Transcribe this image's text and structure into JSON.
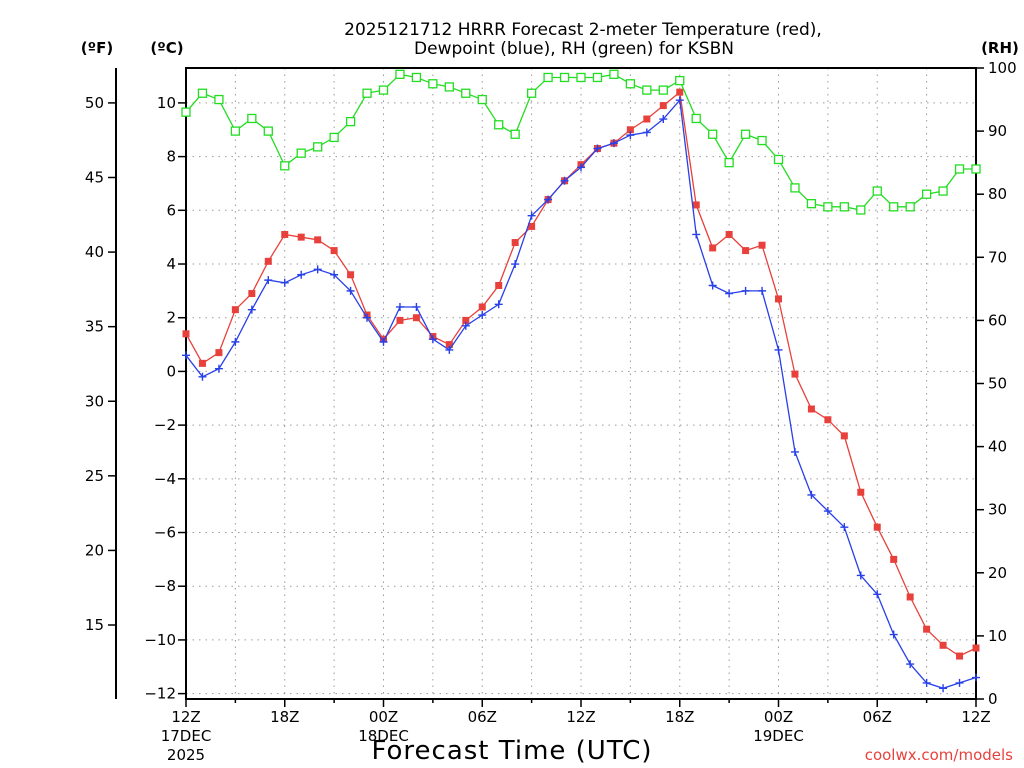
{
  "chart_data": {
    "type": "line",
    "title_line1": "2025121712 HRRR Forecast 2-meter Temperature (red),",
    "title_line2": "Dewpoint (blue), RH (green) for KSBN",
    "xlabel": "Forecast Time (UTC)",
    "credit": "coolwx.com/models",
    "units": {
      "fahrenheit": "(ºF)",
      "celsius": "(ºC)",
      "rh": "(RH)"
    },
    "hours": [
      0,
      1,
      2,
      3,
      4,
      5,
      6,
      7,
      8,
      9,
      10,
      11,
      12,
      13,
      14,
      15,
      16,
      17,
      18,
      19,
      20,
      21,
      22,
      23,
      24,
      25,
      26,
      27,
      28,
      29,
      30,
      31,
      32,
      33,
      34,
      35,
      36,
      37,
      38,
      39,
      40,
      41,
      42,
      43,
      44,
      45,
      46,
      47,
      48
    ],
    "ylim_c": [
      -12.2,
      11.3
    ],
    "ylim_f": [
      10.04,
      52.34
    ],
    "ylim_rh": [
      0,
      100
    ],
    "y_ticks_c": [
      -12,
      -10,
      -8,
      -6,
      -4,
      -2,
      0,
      2,
      4,
      6,
      8,
      10
    ],
    "y_tick_labels_c": [
      "−12",
      "−10",
      "−8",
      "−6",
      "−4",
      "−2",
      "0",
      "2",
      "4",
      "6",
      "8",
      "10"
    ],
    "y_ticks_f": [
      15,
      20,
      25,
      30,
      35,
      40,
      45,
      50
    ],
    "y_tick_labels_f": [
      "15",
      "20",
      "25",
      "30",
      "35",
      "40",
      "45",
      "50"
    ],
    "y_ticks_rh": [
      0,
      10,
      20,
      30,
      40,
      50,
      60,
      70,
      80,
      90,
      100
    ],
    "y_tick_labels_rh": [
      "0",
      "10",
      "20",
      "30",
      "40",
      "50",
      "60",
      "70",
      "80",
      "90",
      "100"
    ],
    "x_ticks": [
      0,
      6,
      12,
      18,
      24,
      30,
      36,
      42,
      48
    ],
    "x_tick_labels": [
      "12Z",
      "18Z",
      "00Z",
      "06Z",
      "12Z",
      "18Z",
      "00Z",
      "06Z",
      "12Z"
    ],
    "date_labels": [
      {
        "hour": 0,
        "line1": "17DEC",
        "line2": "2025"
      },
      {
        "hour": 12,
        "line1": "18DEC",
        "line2": ""
      },
      {
        "hour": 36,
        "line1": "19DEC",
        "line2": ""
      }
    ],
    "series": [
      {
        "name": "2-meter Temperature",
        "color": "#e8413c",
        "marker": "filled-square",
        "axis": "celsius",
        "values": [
          1.4,
          0.3,
          0.7,
          2.3,
          2.9,
          4.1,
          5.1,
          5.0,
          4.9,
          4.5,
          3.6,
          2.1,
          1.2,
          1.9,
          2.0,
          1.3,
          1.0,
          1.9,
          2.4,
          3.2,
          4.8,
          5.4,
          6.4,
          7.1,
          7.7,
          8.3,
          8.5,
          9.0,
          9.4,
          9.9,
          10.4,
          6.2,
          4.6,
          5.1,
          4.5,
          4.7,
          2.7,
          -0.1,
          -1.4,
          -1.8,
          -2.4,
          -4.5,
          -5.8,
          -7.0,
          -8.4,
          -9.6,
          -10.2,
          -10.6,
          -10.3
        ]
      },
      {
        "name": "Dewpoint",
        "color": "#2840e8",
        "marker": "plus",
        "axis": "celsius",
        "values": [
          0.6,
          -0.2,
          0.1,
          1.1,
          2.3,
          3.4,
          3.3,
          3.6,
          3.8,
          3.6,
          3.0,
          2.0,
          1.1,
          2.4,
          2.4,
          1.2,
          0.8,
          1.7,
          2.1,
          2.5,
          4.0,
          5.8,
          6.4,
          7.1,
          7.6,
          8.3,
          8.5,
          8.8,
          8.9,
          9.4,
          10.1,
          5.1,
          3.2,
          2.9,
          3.0,
          3.0,
          0.8,
          -3.0,
          -4.6,
          -5.2,
          -5.8,
          -7.6,
          -8.3,
          -9.8,
          -10.9,
          -11.6,
          -11.8,
          -11.6,
          -11.4
        ]
      },
      {
        "name": "RH",
        "color": "#22dd22",
        "marker": "open-square",
        "axis": "rh",
        "values": [
          93,
          96,
          95,
          90,
          92,
          90,
          84.5,
          86.5,
          87.5,
          89,
          91.5,
          96,
          96.5,
          99,
          98.5,
          97.5,
          97,
          96,
          95,
          91,
          89.5,
          96,
          98.5,
          98.5,
          98.5,
          98.5,
          99,
          97.5,
          96.5,
          96.5,
          98,
          92,
          89.5,
          85,
          89.5,
          88.5,
          85.5,
          81,
          78.5,
          78,
          78,
          77.5,
          80.5,
          78,
          78,
          80,
          80.5,
          84,
          84
        ]
      }
    ]
  }
}
